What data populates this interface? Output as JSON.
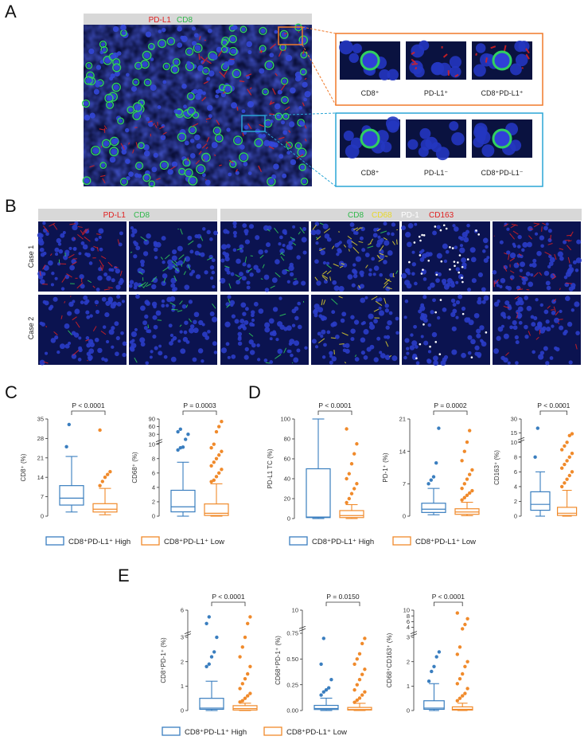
{
  "colors": {
    "high": "#3a7ebf",
    "low": "#f08a2b",
    "pdl1": "#e02020",
    "cd8": "#2fb84a",
    "cd68": "#e8d82a",
    "pd1": "#ffffff",
    "cd163": "#e02020",
    "zoom_orange": "#f07a2a",
    "zoom_blue": "#2aa6d6",
    "nuclei": "#1e2fa8"
  },
  "panel_labels": {
    "a": "A",
    "b": "B",
    "c": "C",
    "d": "D",
    "e": "E"
  },
  "panel_a": {
    "header": {
      "pdl1": "PD-L1",
      "cd8": "CD8"
    },
    "zoom_top": [
      "CD8⁺",
      "PD-L1⁺",
      "CD8⁺PD-L1⁺"
    ],
    "zoom_bottom": [
      "CD8⁺",
      "PD-L1⁻",
      "CD8⁺PD-L1⁻"
    ]
  },
  "panel_b": {
    "header_left": {
      "pdl1": "PD-L1",
      "cd8": "CD8"
    },
    "header_right": {
      "cd8": "CD8",
      "cd68": "CD68",
      "pd1": "PD-1",
      "cd163": "CD163"
    },
    "rows": [
      "Case 1",
      "Case 2"
    ]
  },
  "legend": {
    "high": "CD8⁺PD-L1⁺ High",
    "low": "CD8⁺PD-L1⁺ Low"
  },
  "chart_data": [
    {
      "id": "c1",
      "type": "box",
      "ylabel": "CD8⁺ (%)",
      "pvalue": "P < 0.0001",
      "ticks": [
        "0",
        "7",
        "14",
        "21",
        "28",
        "35"
      ],
      "ylim": [
        0,
        35
      ],
      "high": {
        "min": 1.5,
        "q1": 4,
        "median": 6.5,
        "q3": 11,
        "max": 21.5,
        "outliers": [
          25,
          33
        ]
      },
      "low": {
        "min": 0.5,
        "q1": 1.5,
        "median": 2.5,
        "q3": 4.5,
        "max": 10,
        "outliers": [
          11,
          12.5,
          14,
          15,
          16,
          31
        ]
      }
    },
    {
      "id": "c2",
      "type": "box",
      "ylabel": "CD68⁺ (%)",
      "pvalue": "P = 0.0003",
      "ticks": [
        "0",
        "2",
        "4",
        "6",
        "8",
        "10",
        "30",
        "60",
        "90"
      ],
      "high": {
        "min": 0,
        "q1": 0.6,
        "median": 1.3,
        "q3": 3.6,
        "max": 7.5,
        "outliers": [
          9.2,
          9.5,
          9.6,
          10.3,
          30,
          40,
          50
        ]
      },
      "low": {
        "min": 0,
        "q1": 0.1,
        "median": 0.4,
        "q3": 1.7,
        "max": 4.5,
        "outliers": [
          4.8,
          5,
          5.5,
          6,
          6.5,
          7,
          7.5,
          8,
          8.5,
          9,
          9.5,
          10,
          40,
          60,
          80
        ]
      }
    },
    {
      "id": "d1",
      "type": "box",
      "ylabel": "PD-L1 TC (%)",
      "pvalue": "P < 0.0001",
      "ticks": [
        "0",
        "20",
        "40",
        "60",
        "80",
        "100"
      ],
      "ylim": [
        0,
        100
      ],
      "high": {
        "min": 0,
        "q1": 1,
        "median": 1.5,
        "q3": 50,
        "max": 100,
        "outliers": []
      },
      "low": {
        "min": 0,
        "q1": 1,
        "median": 3,
        "q3": 8,
        "max": 14,
        "outliers": [
          16,
          20,
          25,
          30,
          35,
          40,
          45,
          55,
          65,
          75,
          90
        ]
      }
    },
    {
      "id": "d2",
      "type": "box",
      "ylabel": "PD-1⁺ (%)",
      "pvalue": "P = 0.0002",
      "ticks": [
        "0",
        "7",
        "14",
        "21"
      ],
      "ylim": [
        0,
        21
      ],
      "high": {
        "min": 0.3,
        "q1": 0.8,
        "median": 1.5,
        "q3": 2.8,
        "max": 6,
        "outliers": [
          7,
          7.8,
          8.5,
          11.5,
          19
        ]
      },
      "low": {
        "min": 0.1,
        "q1": 0.4,
        "median": 0.9,
        "q3": 1.6,
        "max": 3,
        "outliers": [
          3.5,
          4,
          4.5,
          5,
          5.5,
          6,
          7,
          8,
          9,
          10,
          12,
          14,
          16,
          18.5
        ]
      }
    },
    {
      "id": "d3",
      "type": "box",
      "ylabel": "CD163⁺ (%)",
      "pvalue": "P < 0.0001",
      "ticks": [
        "0",
        "2",
        "4",
        "6",
        "8",
        "10",
        "15",
        "30"
      ],
      "high": {
        "min": 0,
        "q1": 0.8,
        "median": 1.6,
        "q3": 3.3,
        "max": 6,
        "outliers": [
          8,
          20
        ]
      },
      "low": {
        "min": 0,
        "q1": 0.1,
        "median": 0.4,
        "q3": 1.2,
        "max": 3.5,
        "outliers": [
          4,
          4.5,
          5,
          5.5,
          6,
          6.5,
          7,
          7.5,
          8,
          8.5,
          9,
          9.5,
          10,
          12,
          14
        ]
      }
    },
    {
      "id": "e1",
      "type": "box",
      "ylabel": "CD8⁺PD-1⁺ (%)",
      "pvalue": "P < 0.0001",
      "ticks": [
        "0",
        "1",
        "2",
        "3",
        "6"
      ],
      "high": {
        "min": 0,
        "q1": 0.05,
        "median": 0.1,
        "q3": 0.5,
        "max": 1.2,
        "outliers": [
          1.8,
          1.9,
          2.2,
          2.4,
          3,
          4,
          5
        ]
      },
      "low": {
        "min": 0,
        "q1": 0.02,
        "median": 0.08,
        "q3": 0.2,
        "max": 0.3,
        "outliers": [
          0.35,
          0.4,
          0.5,
          0.6,
          0.7,
          0.9,
          1.1,
          1.3,
          1.5,
          1.8,
          2.2,
          2.6,
          3,
          4,
          5
        ]
      }
    },
    {
      "id": "e2",
      "type": "box",
      "ylabel": "CD68⁺PD-1⁺ (%)",
      "pvalue": "P = 0.0150",
      "ticks": [
        "0.00",
        "0.25",
        "0.50",
        "0.75",
        "10"
      ],
      "high": {
        "min": 0,
        "q1": 0.01,
        "median": 0.02,
        "q3": 0.05,
        "max": 0.12,
        "outliers": [
          0.15,
          0.18,
          0.2,
          0.22,
          0.3,
          0.45,
          0.7
        ]
      },
      "low": {
        "min": 0,
        "q1": 0.005,
        "median": 0.01,
        "q3": 0.03,
        "max": 0.07,
        "outliers": [
          0.08,
          0.1,
          0.12,
          0.15,
          0.18,
          0.2,
          0.25,
          0.3,
          0.35,
          0.4,
          0.45,
          0.5,
          0.55,
          0.65,
          0.7
        ]
      }
    },
    {
      "id": "e3",
      "type": "box",
      "ylabel": "CD68⁺CD163⁺ (%)",
      "pvalue": "P < 0.0001",
      "ticks": [
        "0",
        "1",
        "2",
        "3",
        "4",
        "6",
        "8",
        "10"
      ],
      "high": {
        "min": 0,
        "q1": 0.05,
        "median": 0.1,
        "q3": 0.4,
        "max": 1.1,
        "outliers": [
          1.2,
          1.6,
          1.8,
          2.2,
          2.4
        ]
      },
      "low": {
        "min": 0,
        "q1": 0.02,
        "median": 0.05,
        "q3": 0.15,
        "max": 0.3,
        "outliers": [
          0.4,
          0.5,
          0.6,
          0.7,
          0.9,
          1.1,
          1.3,
          1.5,
          1.8,
          2.0,
          2.3,
          2.6,
          3.5,
          5,
          7,
          9
        ]
      }
    }
  ]
}
